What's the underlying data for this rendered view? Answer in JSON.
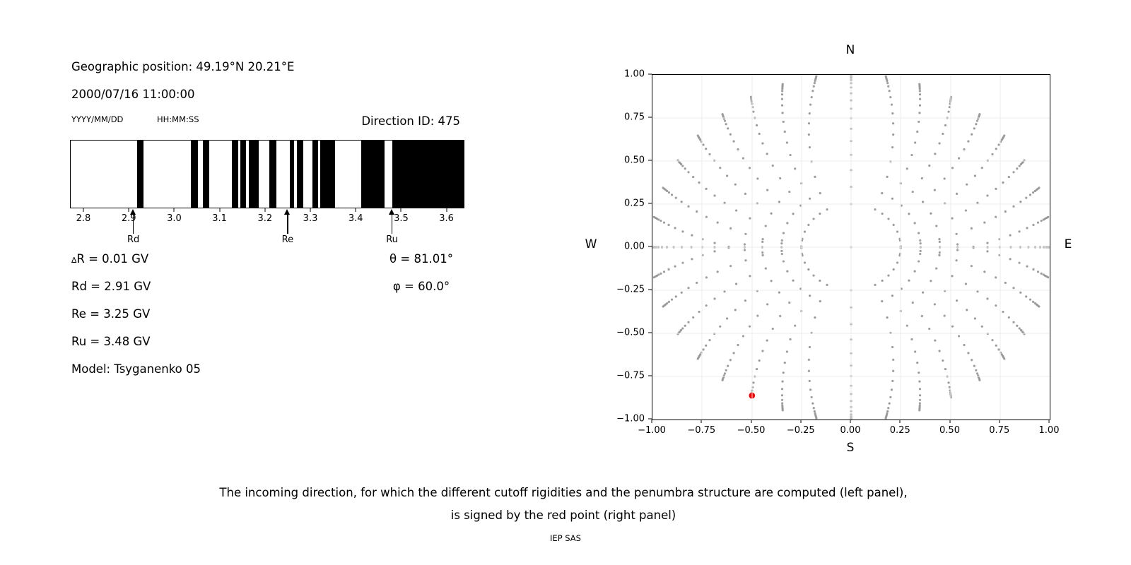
{
  "header": {
    "geographic_position": "Geographic position: 49.19°N 20.21°E",
    "datetime": "2000/07/16 11:00:00",
    "date_format": "YYYY/MM/DD",
    "time_format": "HH:MM:SS",
    "direction_id": "Direction ID: 475"
  },
  "results": {
    "delta_symbol": "∆",
    "delta_rest": "R = 0.01 GV",
    "rows": [
      "Rd = 2.91 GV",
      "Re = 3.25 GV",
      "Ru = 3.48 GV",
      "Model: Tsyganenko 05"
    ],
    "theta": "θ = 81.01°",
    "phi": "φ = 60.0°"
  },
  "compass": {
    "n": "N",
    "s": "S",
    "e": "E",
    "w": "W"
  },
  "caption": {
    "line1": "The incoming direction, for which the different cutoff rigidities and the penumbra structure are computed (left panel),",
    "line2": "is signed by the red point (right panel)",
    "credit": "IEP SAS"
  },
  "colors": {
    "bar": "#000000",
    "dot": "#8f8f8f",
    "red_point": "#ff0000",
    "grid": "#ececec"
  },
  "chart_data": [
    {
      "type": "bar",
      "title": "penumbra structure (black = forbidden rigidity bands)",
      "xlabel_unit": "GV",
      "xlim": [
        2.7704,
        3.6364
      ],
      "x_ticks": [
        2.8,
        2.9,
        3.0,
        3.1,
        3.2,
        3.3,
        3.4,
        3.5,
        3.6
      ],
      "x_tick_labels": [
        "2.8",
        "2.9",
        "3.0",
        "3.1",
        "3.2",
        "3.3",
        "3.4",
        "3.5",
        "3.6"
      ],
      "forbidden_bands_GV": [
        [
          2.917,
          2.931
        ],
        [
          3.035,
          3.05
        ],
        [
          3.061,
          3.075
        ],
        [
          3.125,
          3.139
        ],
        [
          3.144,
          3.156
        ],
        [
          3.163,
          3.184
        ],
        [
          3.208,
          3.223
        ],
        [
          3.254,
          3.263
        ],
        [
          3.269,
          3.283
        ],
        [
          3.303,
          3.315
        ],
        [
          3.32,
          3.353
        ],
        [
          3.41,
          3.462
        ],
        [
          3.479,
          3.6364
        ]
      ],
      "arrows": [
        {
          "label": "Rd",
          "value_GV": 2.91
        },
        {
          "label": "Re",
          "value_GV": 3.25
        },
        {
          "label": "Ru",
          "value_GV": 3.48
        }
      ]
    },
    {
      "type": "scatter",
      "title": "grid of incoming directions (N up, E right)",
      "xlim": [
        -1,
        1
      ],
      "ylim": [
        -1,
        1
      ],
      "x_ticks": [
        -1,
        -0.75,
        -0.5,
        -0.25,
        0,
        0.25,
        0.5,
        0.75,
        1
      ],
      "x_tick_labels": [
        "−1.00",
        "−0.75",
        "−0.50",
        "−0.25",
        "0.00",
        "0.25",
        "0.50",
        "0.75",
        "1.00"
      ],
      "y_tick_labels_ascending": [
        "−1.00",
        "−0.75",
        "−0.50",
        "−0.25",
        "0.00",
        "0.25",
        "0.50",
        "0.75",
        "1.00"
      ],
      "grid_values": [
        -0.75,
        -0.5,
        -0.25,
        0,
        0.25,
        0.5,
        0.75
      ],
      "grid_on": true,
      "spokes": {
        "count": 36,
        "azimuth_step_deg": 10,
        "r_values": [
          0.25,
          0.35,
          0.447,
          0.536,
          0.616,
          0.687,
          0.749,
          0.804,
          0.852,
          0.893,
          0.927,
          0.952,
          0.97,
          0.982,
          0.991,
          0.999,
          1.007
        ],
        "twist_deg_per_unit": 25,
        "twist_toward": "west-east axis",
        "inner_ring_r": 0.25,
        "center_dot": true
      },
      "red_point": {
        "x": -0.499,
        "y": -0.861,
        "theta_deg": 81.01,
        "phi_deg": 60.0
      }
    }
  ]
}
